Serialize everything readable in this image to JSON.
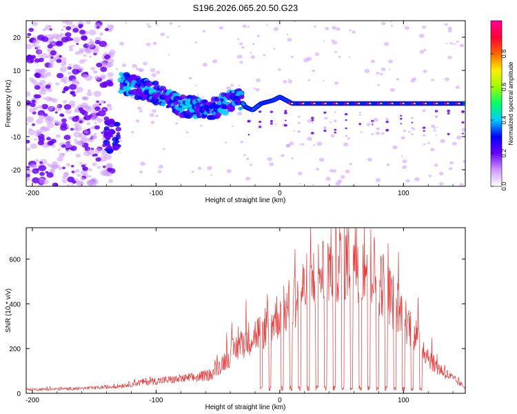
{
  "title": "S196.2026.065.20.50.G23",
  "chart_data": [
    {
      "type": "heatmap",
      "xlabel": "Height of straight line (km)",
      "ylabel": "Frequency (Hz)",
      "xlim": [
        -205,
        150
      ],
      "ylim": [
        -25,
        25
      ],
      "xticks": [
        -200,
        -100,
        0,
        100
      ],
      "xtick_labels": [
        "-200",
        "-100",
        "0",
        "100"
      ],
      "yticks": [
        -20,
        -10,
        0,
        10,
        20
      ],
      "ytick_labels": [
        "-20",
        "-10",
        "0",
        "10",
        "20"
      ],
      "colorbar": {
        "label": "Normalized spectral amplitude",
        "range": [
          0,
          1
        ],
        "ticks": [
          0.0,
          0.2,
          0.4,
          0.6,
          0.8
        ],
        "tick_labels": [
          "0.0",
          "0.2",
          "0.4",
          "0.6",
          "0.8"
        ],
        "colors": [
          "#ffffff",
          "#cc99ff",
          "#6a00ff",
          "#0000ff",
          "#00ccff",
          "#00ff66",
          "#99ff00",
          "#ffee00",
          "#ff6600",
          "#ff0033",
          "#ff0099"
        ]
      },
      "ridge": [
        {
          "x": -128,
          "y": 6
        },
        {
          "x": -118,
          "y": 5
        },
        {
          "x": -108,
          "y": 4
        },
        {
          "x": -98,
          "y": 3
        },
        {
          "x": -88,
          "y": 1
        },
        {
          "x": -78,
          "y": -1
        },
        {
          "x": -68,
          "y": -1
        },
        {
          "x": -58,
          "y": -2
        },
        {
          "x": -48,
          "y": -1
        },
        {
          "x": -40,
          "y": 1
        },
        {
          "x": -33,
          "y": 2
        },
        {
          "x": -28,
          "y": -1
        },
        {
          "x": -22,
          "y": -2
        },
        {
          "x": -15,
          "y": 0
        },
        {
          "x": -5,
          "y": 1
        },
        {
          "x": 0,
          "y": 2
        },
        {
          "x": 10,
          "y": 0
        },
        {
          "x": 30,
          "y": 0
        },
        {
          "x": 60,
          "y": 0
        },
        {
          "x": 90,
          "y": 0
        },
        {
          "x": 120,
          "y": 0
        },
        {
          "x": 150,
          "y": 0
        }
      ],
      "low_cluster": {
        "x": [
          -142,
          -130
        ],
        "y": [
          -15,
          -4
        ]
      }
    },
    {
      "type": "line",
      "xlabel": "Height of straight line (km)",
      "ylabel": "SNR (10 * v/v)",
      "xlim": [
        -205,
        150
      ],
      "ylim": [
        0,
        740
      ],
      "xticks": [
        -200,
        -100,
        0,
        100
      ],
      "xtick_labels": [
        "-200",
        "-100",
        "0",
        "100"
      ],
      "yticks": [
        0,
        200,
        400,
        600
      ],
      "ytick_labels": [
        "0",
        "200",
        "400",
        "600"
      ],
      "color": "#ee3333",
      "envelope": {
        "x": [
          -205,
          -180,
          -150,
          -130,
          -110,
          -90,
          -70,
          -55,
          -45,
          -35,
          -25,
          -15,
          -5,
          5,
          15,
          25,
          35,
          45,
          55,
          65,
          75,
          85,
          95,
          105,
          115,
          125,
          135,
          150
        ],
        "y": [
          20,
          22,
          28,
          38,
          60,
          70,
          80,
          100,
          170,
          240,
          290,
          330,
          390,
          440,
          520,
          580,
          640,
          690,
          710,
          700,
          650,
          560,
          450,
          360,
          250,
          150,
          100,
          30
        ]
      },
      "dropouts": [
        -15,
        -8,
        2,
        9,
        16,
        23,
        30,
        37,
        44,
        51,
        58,
        65,
        72,
        79,
        86,
        93,
        100,
        107,
        114
      ]
    }
  ]
}
